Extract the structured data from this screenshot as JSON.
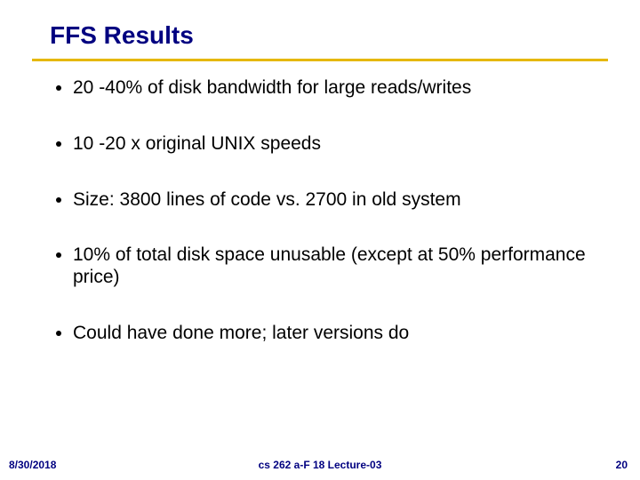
{
  "title": "FFS Results",
  "title_color": "#000080",
  "rule_color": "#e6b800",
  "bullets": [
    "20 -40% of disk bandwidth for large reads/writes",
    "10 -20 x original UNIX speeds",
    "Size: 3800 lines of code vs. 2700 in old system",
    "10% of total disk space unusable (except at 50% performance price)",
    "Could have done more; later versions do"
  ],
  "bullet_fontsize": 21,
  "bullet_color": "#000000",
  "footer": {
    "date": "8/30/2018",
    "center": "cs 262 a-F 18 Lecture-03",
    "page": "20",
    "color": "#000080",
    "fontsize": 12
  },
  "background_color": "#ffffff",
  "slide_width": 720,
  "slide_height": 540
}
